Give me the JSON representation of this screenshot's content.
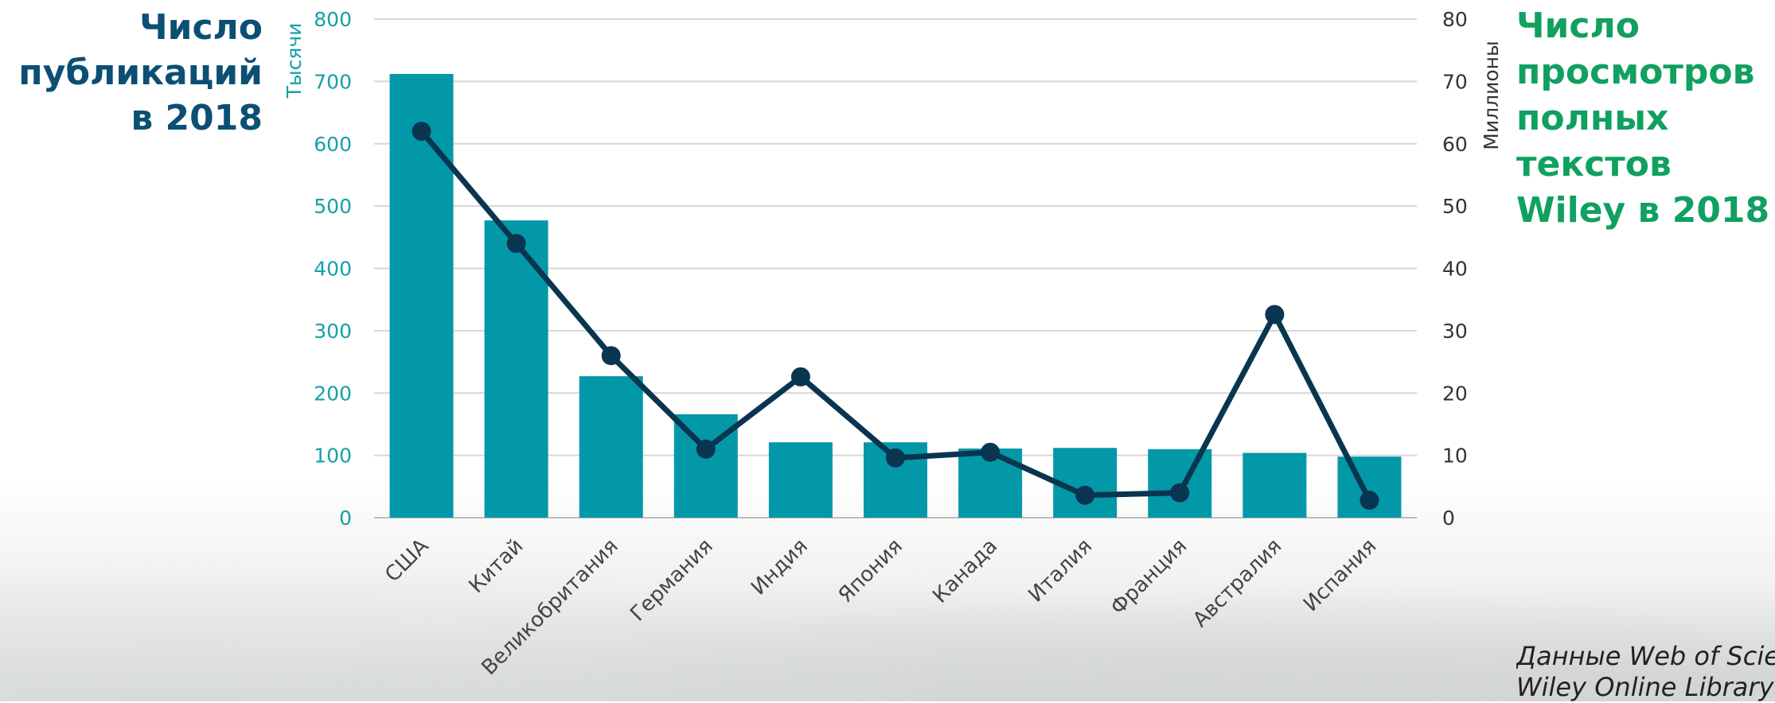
{
  "titles": {
    "left": [
      "Число",
      "публикаций",
      "в 2018"
    ],
    "right": [
      "Число",
      "просмотров",
      "полных",
      "текстов",
      "Wiley в 2018"
    ]
  },
  "source_lines": [
    "Данные Web of Science и",
    "Wiley Online Library"
  ],
  "chart_data": {
    "type": "bar",
    "categories": [
      "США",
      "Китай",
      "Великобритания",
      "Германия",
      "Индия",
      "Япония",
      "Канада",
      "Италия",
      "Франция",
      "Австралия",
      "Испания"
    ],
    "series": [
      {
        "name": "Число публикаций в 2018",
        "type": "bar",
        "axis": "left",
        "color": "#0398a8",
        "values": [
          712,
          477,
          227,
          166,
          121,
          121,
          111,
          112,
          110,
          104,
          98
        ]
      },
      {
        "name": "Число просмотров полных текстов Wiley в 2018",
        "type": "line",
        "axis": "right",
        "color": "#0a3550",
        "values": [
          62,
          44,
          26,
          11,
          22.6,
          9.6,
          10.5,
          3.6,
          4,
          32.6,
          2.8
        ]
      }
    ],
    "y_left": {
      "label": "Тысячи",
      "ylim": [
        0,
        800
      ],
      "ticks": [
        "0",
        "100",
        "200",
        "300",
        "400",
        "500",
        "600",
        "700",
        "800"
      ]
    },
    "y_right": {
      "label": "Миллионы",
      "ylim": [
        0,
        80
      ],
      "ticks": [
        "0",
        "10",
        "20",
        "30",
        "40",
        "50",
        "60",
        "70",
        "80"
      ]
    },
    "grid": true
  },
  "colors": {
    "left_title": "#0c4f75",
    "right_title": "#10a060",
    "left_axis": "#16a0a8"
  }
}
